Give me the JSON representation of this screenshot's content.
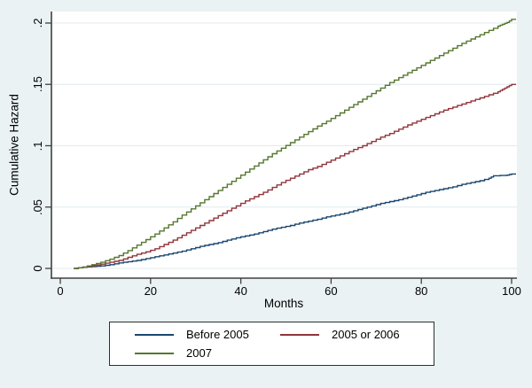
{
  "figure": {
    "background_color": "#eaf2f3",
    "plot_background_color": "#ffffff",
    "grid_color": "#e0ebef",
    "axis_color": "#404040",
    "text_color": "#000000",
    "legend_background_color": "#ffffff",
    "legend_border_color": "#2f2f2f"
  },
  "chart_data": {
    "type": "line",
    "subtype": "step-function-cumulative-hazard",
    "title": "",
    "xlabel": "Months",
    "ylabel": "Cumulative Hazard",
    "x_data_range": [
      0,
      100
    ],
    "y_data_range": [
      0,
      0.2
    ],
    "xlim": [
      -2,
      101.2
    ],
    "ylim": [
      -0.008,
      0.209
    ],
    "grid": "horizontal",
    "legend_position": "bottom-center",
    "x_tick_values": [
      0,
      20,
      40,
      60,
      80,
      100
    ],
    "x_tick_labels": [
      "0",
      "20",
      "40",
      "60",
      "80",
      "100"
    ],
    "y_tick_values": [
      0,
      0.05,
      0.1,
      0.15,
      0.2
    ],
    "y_tick_labels": [
      "0",
      ".05",
      ".1",
      ".15",
      ".2"
    ],
    "series": [
      {
        "name": "Before 2005",
        "color": "#1a476f",
        "points": [
          [
            3,
            0
          ],
          [
            5,
            0.001
          ],
          [
            7,
            0.0015
          ],
          [
            9,
            0.002
          ],
          [
            11,
            0.003
          ],
          [
            13,
            0.0045
          ],
          [
            15,
            0.0055
          ],
          [
            17,
            0.0065
          ],
          [
            19,
            0.008
          ],
          [
            21,
            0.0095
          ],
          [
            23,
            0.011
          ],
          [
            25,
            0.0125
          ],
          [
            27,
            0.014
          ],
          [
            29,
            0.016
          ],
          [
            31,
            0.018
          ],
          [
            33,
            0.0195
          ],
          [
            35,
            0.021
          ],
          [
            37,
            0.023
          ],
          [
            39,
            0.025
          ],
          [
            41,
            0.0265
          ],
          [
            43,
            0.028
          ],
          [
            45,
            0.03
          ],
          [
            47,
            0.032
          ],
          [
            49,
            0.0335
          ],
          [
            51,
            0.035
          ],
          [
            53,
            0.037
          ],
          [
            55,
            0.0385
          ],
          [
            57,
            0.04
          ],
          [
            59,
            0.042
          ],
          [
            61,
            0.0435
          ],
          [
            63,
            0.045
          ],
          [
            65,
            0.047
          ],
          [
            67,
            0.049
          ],
          [
            69,
            0.051
          ],
          [
            71,
            0.053
          ],
          [
            73,
            0.0545
          ],
          [
            75,
            0.056
          ],
          [
            77,
            0.058
          ],
          [
            79,
            0.06
          ],
          [
            81,
            0.062
          ],
          [
            83,
            0.0635
          ],
          [
            85,
            0.065
          ],
          [
            87,
            0.0665
          ],
          [
            89,
            0.0685
          ],
          [
            91,
            0.07
          ],
          [
            93,
            0.0715
          ],
          [
            95,
            0.0735
          ],
          [
            96,
            0.0755
          ],
          [
            99,
            0.076
          ],
          [
            100,
            0.077
          ]
        ]
      },
      {
        "name": "2005 or 2006",
        "color": "#90353b",
        "points": [
          [
            3,
            0
          ],
          [
            5,
            0.001
          ],
          [
            7,
            0.002
          ],
          [
            9,
            0.0035
          ],
          [
            11,
            0.005
          ],
          [
            13,
            0.0065
          ],
          [
            15,
            0.009
          ],
          [
            17,
            0.0115
          ],
          [
            19,
            0.0135
          ],
          [
            21,
            0.016
          ],
          [
            23,
            0.0195
          ],
          [
            25,
            0.023
          ],
          [
            27,
            0.027
          ],
          [
            29,
            0.031
          ],
          [
            31,
            0.035
          ],
          [
            33,
            0.039
          ],
          [
            35,
            0.043
          ],
          [
            37,
            0.047
          ],
          [
            39,
            0.051
          ],
          [
            41,
            0.055
          ],
          [
            43,
            0.0585
          ],
          [
            45,
            0.062
          ],
          [
            47,
            0.066
          ],
          [
            49,
            0.07
          ],
          [
            51,
            0.0735
          ],
          [
            53,
            0.077
          ],
          [
            55,
            0.0805
          ],
          [
            57,
            0.083
          ],
          [
            59,
            0.0865
          ],
          [
            61,
            0.09
          ],
          [
            63,
            0.0935
          ],
          [
            65,
            0.097
          ],
          [
            67,
            0.1
          ],
          [
            69,
            0.1035
          ],
          [
            71,
            0.107
          ],
          [
            73,
            0.11
          ],
          [
            75,
            0.1135
          ],
          [
            77,
            0.117
          ],
          [
            79,
            0.12
          ],
          [
            81,
            0.123
          ],
          [
            83,
            0.126
          ],
          [
            85,
            0.129
          ],
          [
            87,
            0.1315
          ],
          [
            89,
            0.134
          ],
          [
            91,
            0.1365
          ],
          [
            93,
            0.139
          ],
          [
            95,
            0.1415
          ],
          [
            97,
            0.144
          ],
          [
            98,
            0.146
          ],
          [
            99,
            0.148
          ],
          [
            100,
            0.15
          ]
        ]
      },
      {
        "name": "2007",
        "color": "#55772f",
        "points": [
          [
            3,
            0
          ],
          [
            5,
            0.001
          ],
          [
            7,
            0.003
          ],
          [
            9,
            0.005
          ],
          [
            11,
            0.0075
          ],
          [
            13,
            0.0105
          ],
          [
            15,
            0.0145
          ],
          [
            17,
            0.019
          ],
          [
            19,
            0.0235
          ],
          [
            21,
            0.028
          ],
          [
            23,
            0.033
          ],
          [
            25,
            0.038
          ],
          [
            27,
            0.0435
          ],
          [
            29,
            0.0485
          ],
          [
            31,
            0.0535
          ],
          [
            33,
            0.0585
          ],
          [
            35,
            0.0635
          ],
          [
            37,
            0.0685
          ],
          [
            39,
            0.0735
          ],
          [
            41,
            0.0785
          ],
          [
            43,
            0.0835
          ],
          [
            45,
            0.0885
          ],
          [
            47,
            0.0935
          ],
          [
            49,
            0.098
          ],
          [
            51,
            0.1025
          ],
          [
            53,
            0.107
          ],
          [
            55,
            0.1115
          ],
          [
            57,
            0.116
          ],
          [
            59,
            0.12
          ],
          [
            61,
            0.1245
          ],
          [
            63,
            0.129
          ],
          [
            65,
            0.1335
          ],
          [
            67,
            0.138
          ],
          [
            69,
            0.1425
          ],
          [
            71,
            0.147
          ],
          [
            73,
            0.1515
          ],
          [
            75,
            0.1555
          ],
          [
            77,
            0.1595
          ],
          [
            79,
            0.1635
          ],
          [
            81,
            0.1675
          ],
          [
            83,
            0.1715
          ],
          [
            85,
            0.1755
          ],
          [
            87,
            0.1795
          ],
          [
            89,
            0.1835
          ],
          [
            91,
            0.187
          ],
          [
            93,
            0.1905
          ],
          [
            95,
            0.194
          ],
          [
            97,
            0.1975
          ],
          [
            98,
            0.199
          ],
          [
            99,
            0.2005
          ],
          [
            100,
            0.203
          ]
        ]
      }
    ]
  }
}
